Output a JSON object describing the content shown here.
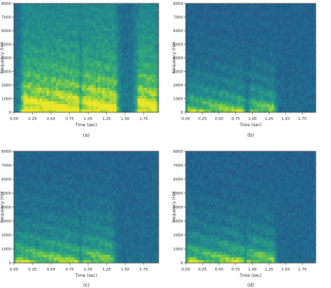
{
  "chart_data": [
    {
      "type": "heatmap",
      "panel": "(a)",
      "xlabel": "Time (sec)",
      "ylabel": "Frequency (Hz)",
      "xlim": [
        0,
        1.95
      ],
      "ylim": [
        0,
        8000
      ],
      "x_ticks": [
        "0.00",
        "0.25",
        "0.50",
        "0.75",
        "1.00",
        "1.25",
        "1.50",
        "1.75"
      ],
      "y_ticks": [
        "0",
        "1000",
        "2000",
        "3000",
        "4000",
        "5000",
        "6000",
        "7000",
        "8000"
      ],
      "colormap": "viridis",
      "description_profile": "broadband",
      "harmonic_energy_segments_sec": [
        [
          0.15,
          0.45
        ],
        [
          0.5,
          0.85
        ],
        [
          0.95,
          1.35
        ],
        [
          1.7,
          1.9
        ]
      ],
      "grid": false
    },
    {
      "type": "heatmap",
      "panel": "(b)",
      "xlabel": "Time (sec)",
      "ylabel": "Frequency (Hz)",
      "xlim": [
        0,
        1.95
      ],
      "ylim": [
        0,
        8000
      ],
      "x_ticks": [
        "0.00",
        "0.25",
        "0.50",
        "0.75",
        "1.00",
        "1.25",
        "1.50",
        "1.75"
      ],
      "y_ticks": [
        "0",
        "1000",
        "2000",
        "3000",
        "4000",
        "5000",
        "6000",
        "7000",
        "8000"
      ],
      "colormap": "viridis",
      "description_profile": "lowband",
      "harmonic_energy_segments_sec": [
        [
          0.05,
          0.45
        ],
        [
          0.5,
          0.85
        ],
        [
          1.0,
          1.3
        ]
      ],
      "grid": false
    },
    {
      "type": "heatmap",
      "panel": "(c)",
      "xlabel": "Time (sec)",
      "ylabel": "Frequency (Hz)",
      "xlim": [
        0,
        1.95
      ],
      "ylim": [
        0,
        8000
      ],
      "x_ticks": [
        "0.00",
        "0.25",
        "0.50",
        "0.75",
        "1.00",
        "1.25",
        "1.50",
        "1.75"
      ],
      "y_ticks": [
        "0",
        "1000",
        "2000",
        "3000",
        "4000",
        "5000",
        "6000",
        "7000",
        "8000"
      ],
      "colormap": "viridis",
      "description_profile": "midband",
      "harmonic_energy_segments_sec": [
        [
          0.05,
          0.45
        ],
        [
          0.5,
          0.85
        ],
        [
          0.95,
          1.3
        ]
      ],
      "grid": false
    },
    {
      "type": "heatmap",
      "panel": "(d)",
      "xlabel": "Time (sec)",
      "ylabel": "Frequency (Hz)",
      "xlim": [
        0,
        1.95
      ],
      "ylim": [
        0,
        8000
      ],
      "x_ticks": [
        "0.00",
        "0.25",
        "0.50",
        "0.75",
        "1.00",
        "1.25",
        "1.50",
        "1.75"
      ],
      "y_ticks": [
        "0",
        "1000",
        "2000",
        "3000",
        "4000",
        "5000",
        "6000",
        "7000",
        "8000"
      ],
      "colormap": "viridis",
      "description_profile": "lowband",
      "harmonic_energy_segments_sec": [
        [
          0.05,
          0.45
        ],
        [
          0.5,
          0.85
        ],
        [
          0.95,
          1.3
        ]
      ],
      "grid": false
    }
  ]
}
